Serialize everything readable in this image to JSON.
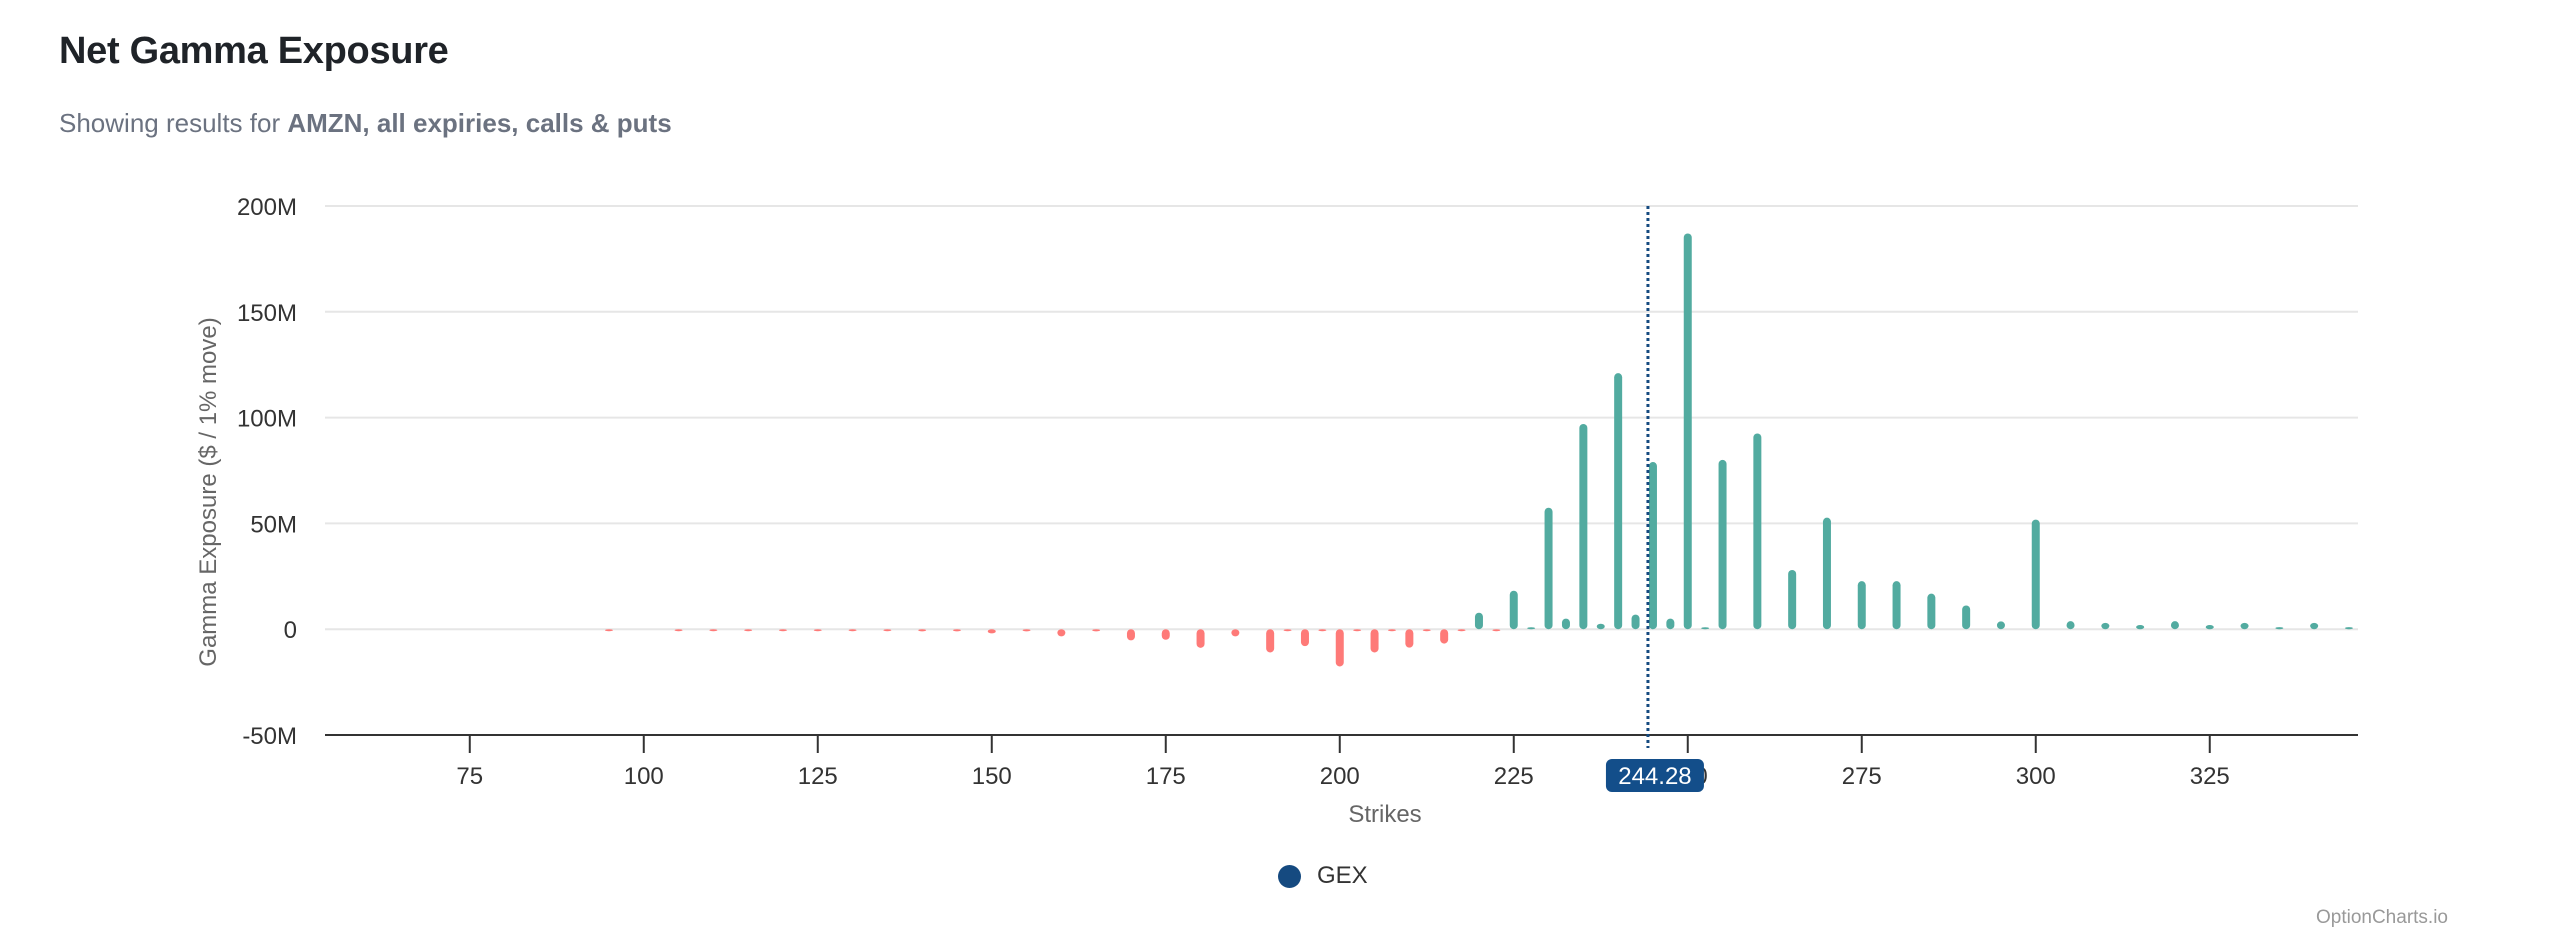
{
  "header": {
    "title": "Net Gamma Exposure",
    "subtitle_prefix": "Showing results for ",
    "subtitle_bold": "AMZN, all expiries, calls & puts"
  },
  "legend": {
    "items": [
      {
        "label": "GEX",
        "color": "#154a80"
      }
    ]
  },
  "watermark": "OptionCharts.io",
  "colors": {
    "positive": "#52aba0",
    "negative": "#fe7a78",
    "spot_line": "#154a80",
    "spot_label_bg": "#134e8a",
    "grid": "#e6e6e6",
    "axis": "#333333"
  },
  "chart_data": {
    "type": "bar",
    "title": "Net Gamma Exposure",
    "xlabel": "Strikes",
    "ylabel": "Gamma Exposure ($ / 1% move)",
    "xlim": [
      54.2,
      346.3
    ],
    "ylim": [
      -50000000,
      200000000
    ],
    "x_ticks": [
      75,
      100,
      125,
      150,
      175,
      200,
      225,
      250,
      275,
      300,
      325
    ],
    "y_ticks": [
      -50000000,
      0,
      50000000,
      100000000,
      150000000,
      200000000
    ],
    "y_tick_labels": [
      "-50M",
      "0",
      "50M",
      "100M",
      "150M",
      "200M"
    ],
    "grid": true,
    "legend_position": "bottom-center",
    "spot_price": {
      "value": 244.28,
      "label": "244.28",
      "style": "dotted vertical line"
    },
    "series": [
      {
        "name": "GEX",
        "strikes": [
          95,
          105,
          110,
          115,
          120,
          125,
          130,
          135,
          140,
          145,
          150,
          155,
          160,
          165,
          170,
          175,
          180,
          185,
          190,
          192.5,
          195,
          197.5,
          200,
          202.5,
          205,
          207.5,
          210,
          212.5,
          215,
          217.5,
          220,
          222.5,
          225,
          227.5,
          230,
          232.5,
          235,
          237.5,
          240,
          242.5,
          245,
          247.5,
          250,
          252.5,
          255,
          260,
          265,
          270,
          275,
          280,
          285,
          290,
          295,
          300,
          305,
          310,
          315,
          320,
          325,
          330,
          335,
          340,
          345
        ],
        "values_millions": [
          -0.5,
          -0.5,
          -0.5,
          -0.5,
          -0.5,
          -0.5,
          -0.5,
          -0.5,
          -1.0,
          -1.0,
          -2.0,
          -1.0,
          -3.4,
          -1.0,
          -5.3,
          -5.0,
          -8.8,
          -3.4,
          -11.0,
          -0.5,
          -8.0,
          -0.5,
          -17.6,
          -0.5,
          -11.0,
          -0.5,
          -8.7,
          -0.5,
          -6.8,
          -0.5,
          7.8,
          -0.5,
          18.2,
          0.5,
          57.4,
          5.0,
          97.0,
          2.6,
          121.0,
          6.9,
          79.0,
          5.0,
          187.0,
          0.5,
          80.0,
          92.5,
          28.0,
          52.7,
          22.7,
          22.7,
          16.8,
          11.2,
          3.7,
          51.8,
          3.8,
          3.0,
          2.0,
          3.8,
          2.0,
          3.0,
          1.0,
          3.0,
          1.0
        ]
      }
    ]
  }
}
